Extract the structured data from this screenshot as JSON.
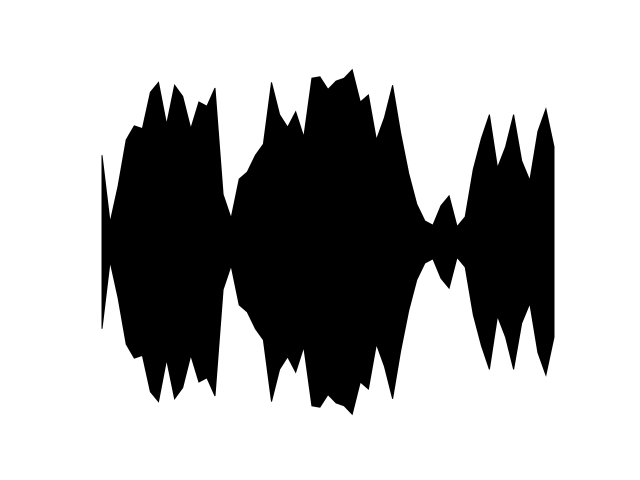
{
  "figure": {
    "background_color": "#ffffff",
    "fill_color": "#000000"
  },
  "waveform": {
    "time": [
      0,
      4,
      8,
      12,
      16,
      20,
      24,
      28,
      32,
      36,
      40,
      44,
      48,
      52,
      56,
      60,
      64,
      68,
      72,
      76,
      80,
      84,
      88,
      92,
      96,
      100,
      104,
      108,
      112,
      116,
      120,
      124,
      128,
      132,
      136,
      140,
      144,
      148,
      152,
      156,
      160,
      164,
      168,
      172,
      176,
      180,
      184,
      188,
      192,
      196,
      200,
      204,
      208,
      212,
      216,
      220,
      224
    ],
    "amplitude": [
      0.62,
      0.14,
      0.4,
      0.73,
      0.83,
      0.81,
      1.07,
      1.14,
      0.84,
      1.12,
      1.04,
      0.81,
      1.0,
      0.97,
      1.1,
      0.34,
      0.17,
      0.45,
      0.5,
      0.62,
      0.7,
      1.14,
      0.91,
      0.82,
      0.93,
      0.75,
      1.17,
      1.18,
      1.09,
      1.15,
      1.17,
      1.23,
      1.0,
      1.05,
      0.73,
      0.89,
      1.12,
      0.78,
      0.49,
      0.27,
      0.15,
      0.12,
      0.26,
      0.33,
      0.11,
      0.18,
      0.52,
      0.74,
      0.91,
      0.53,
      0.68,
      0.91,
      0.58,
      0.44,
      0.79,
      0.95,
      0.68
    ]
  }
}
